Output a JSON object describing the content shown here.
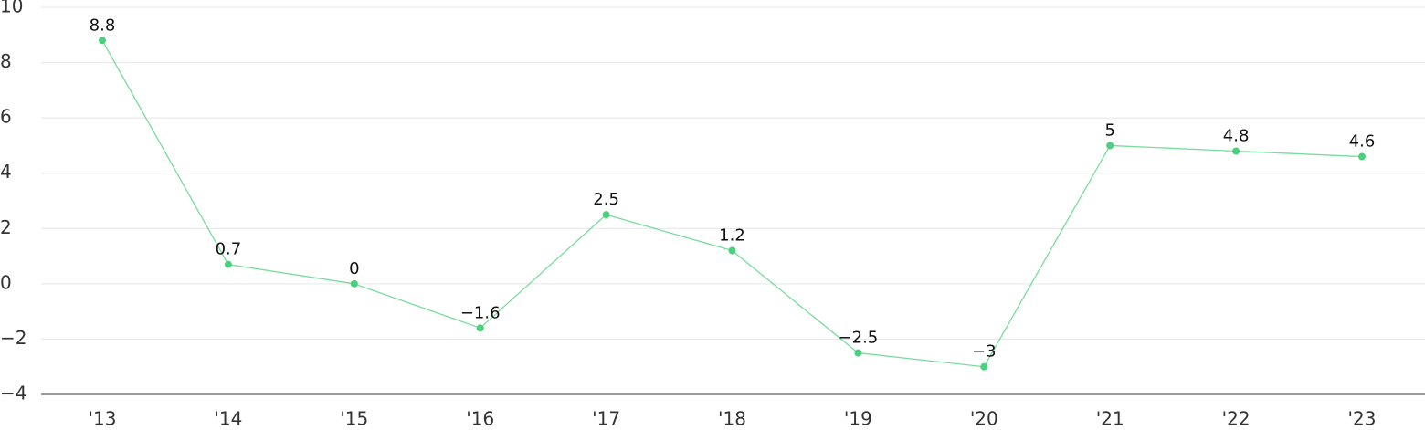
{
  "chart_data": {
    "type": "line",
    "categories": [
      "'13",
      "'14",
      "'15",
      "'16",
      "'17",
      "'18",
      "'19",
      "'20",
      "'21",
      "'22",
      "'23"
    ],
    "series": [
      {
        "color": "#4cd07d",
        "values": [
          8.8,
          0.7,
          0,
          -1.6,
          2.5,
          1.2,
          -2.5,
          -3,
          5,
          4.8,
          4.6
        ],
        "value_labels": [
          "8.8",
          "0.7",
          "0",
          "−1.6",
          "2.5",
          "1.2",
          "−2.5",
          "−3",
          "5",
          "4.8",
          "4.6"
        ]
      }
    ],
    "ylim": [
      -4,
      10
    ],
    "yticks": [
      {
        "value": -4,
        "label": "−4"
      },
      {
        "value": -2,
        "label": "−2"
      },
      0,
      2,
      4,
      6,
      8,
      10
    ],
    "grid": true
  }
}
